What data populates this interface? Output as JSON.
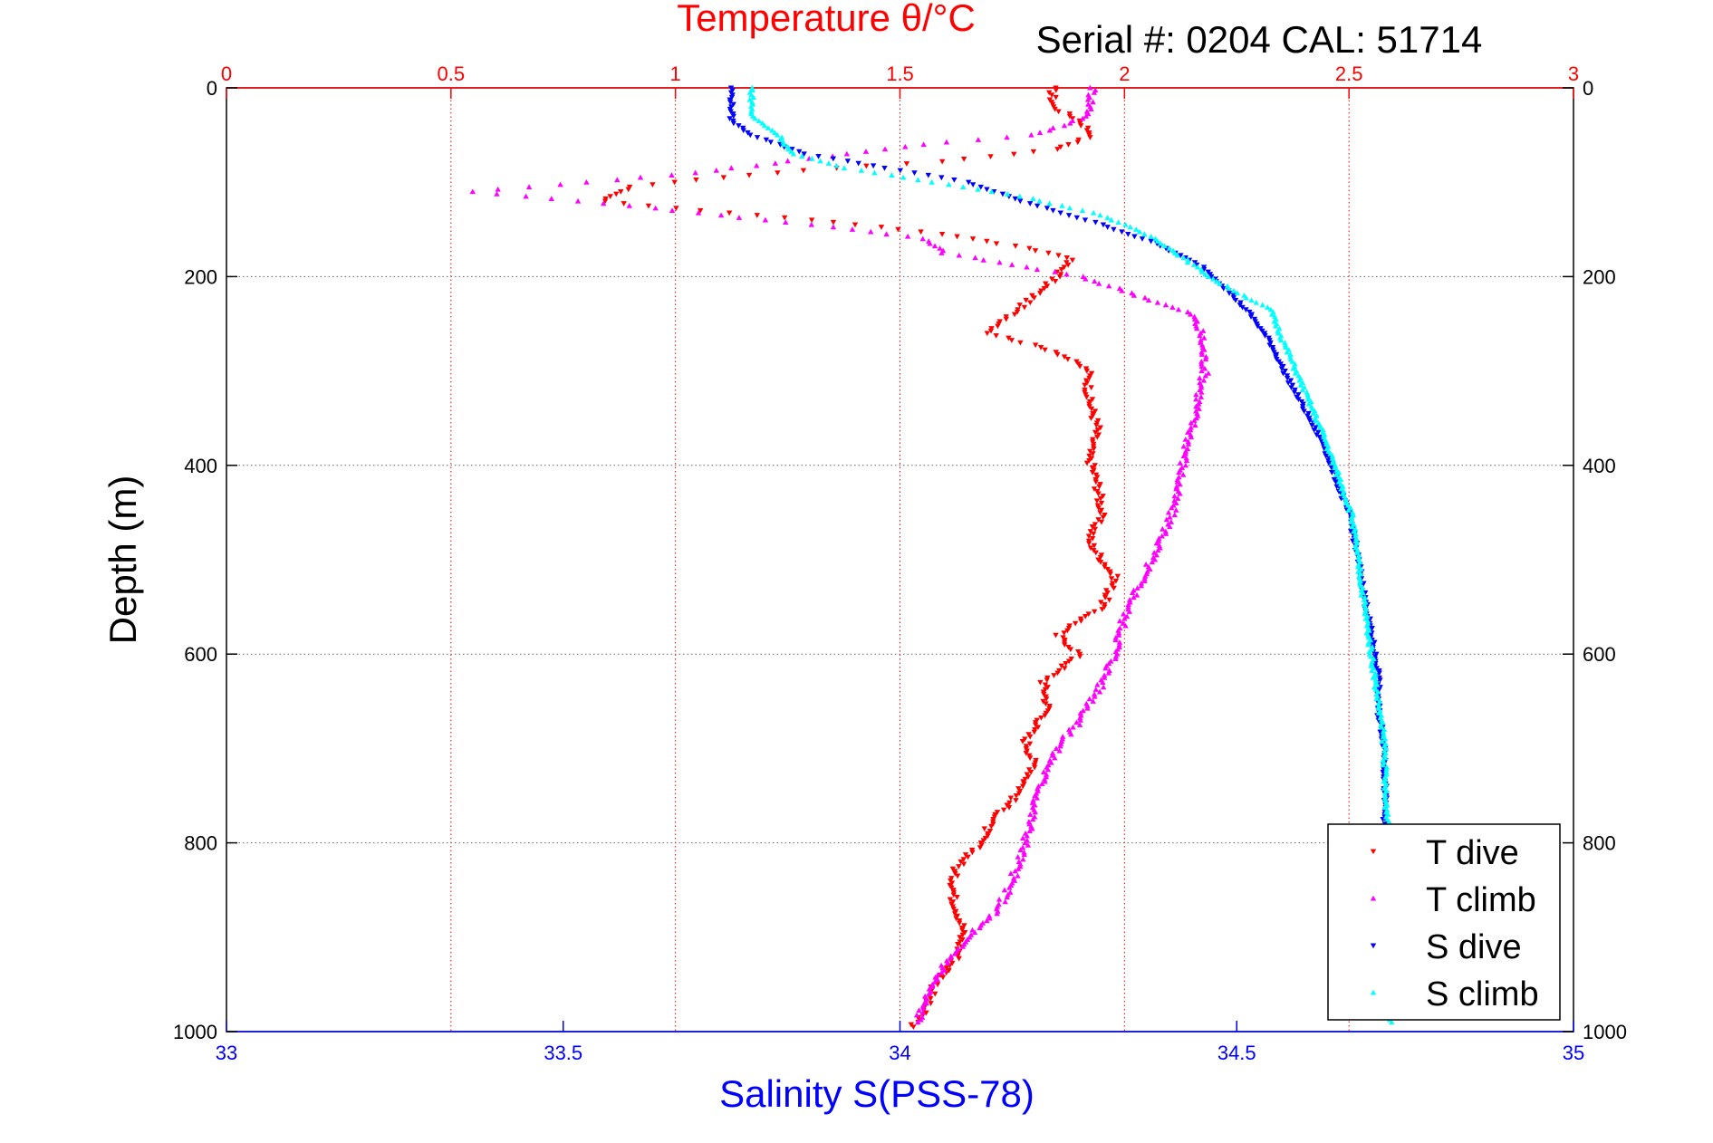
{
  "chart_data": {
    "type": "scatter",
    "title": "Temperature θ/°C",
    "subtitle": "Serial #: 0204  CAL: 51714",
    "xlabel_bottom": "Salinity S(PSS-78)",
    "xlabel_top": "Temperature θ/°C",
    "ylabel": "Depth (m)",
    "x_bottom_lim": [
      33,
      35
    ],
    "x_top_lim": [
      0,
      3
    ],
    "ylim": [
      0,
      1000
    ],
    "y_reversed": true,
    "x_bottom_ticks": [
      "33",
      "33.5",
      "34",
      "34.5",
      "35"
    ],
    "x_top_ticks": [
      "0",
      "0.5",
      "1",
      "1.5",
      "2",
      "2.5",
      "3"
    ],
    "y_ticks": [
      "0",
      "200",
      "400",
      "600",
      "800",
      "1000"
    ],
    "grid": true,
    "legend_position": "bottom-right",
    "colors": {
      "temperature_axis": "#ff0000",
      "salinity_axis": "#0000ff",
      "grid": "#666666"
    },
    "series": [
      {
        "name": "T dive",
        "axis": "top",
        "color": "#ff0000",
        "marker": "triangle-down",
        "points": [
          [
            1.84,
            0
          ],
          [
            1.84,
            20
          ],
          [
            1.9,
            35
          ],
          [
            1.93,
            50
          ],
          [
            1.85,
            65
          ],
          [
            1.6,
            78
          ],
          [
            1.35,
            85
          ],
          [
            1.1,
            95
          ],
          [
            0.9,
            105
          ],
          [
            0.84,
            120
          ],
          [
            1.05,
            130
          ],
          [
            1.3,
            140
          ],
          [
            1.6,
            155
          ],
          [
            1.78,
            170
          ],
          [
            1.88,
            180
          ],
          [
            1.85,
            200
          ],
          [
            1.8,
            220
          ],
          [
            1.75,
            240
          ],
          [
            1.7,
            260
          ],
          [
            1.85,
            280
          ],
          [
            1.92,
            300
          ],
          [
            1.92,
            330
          ],
          [
            1.94,
            360
          ],
          [
            1.92,
            390
          ],
          [
            1.94,
            420
          ],
          [
            1.95,
            450
          ],
          [
            1.92,
            480
          ],
          [
            1.95,
            500
          ],
          [
            1.98,
            520
          ],
          [
            1.95,
            550
          ],
          [
            1.85,
            580
          ],
          [
            1.9,
            600
          ],
          [
            1.82,
            630
          ],
          [
            1.83,
            660
          ],
          [
            1.78,
            690
          ],
          [
            1.8,
            720
          ],
          [
            1.76,
            750
          ],
          [
            1.7,
            780
          ],
          [
            1.68,
            800
          ],
          [
            1.62,
            830
          ],
          [
            1.62,
            860
          ],
          [
            1.64,
            890
          ],
          [
            1.63,
            920
          ],
          [
            1.58,
            950
          ],
          [
            1.55,
            980
          ],
          [
            1.53,
            995
          ]
        ]
      },
      {
        "name": "T climb",
        "axis": "top",
        "color": "#ff00ff",
        "marker": "triangle-up",
        "points": [
          [
            1.93,
            0
          ],
          [
            1.92,
            30
          ],
          [
            1.8,
            50
          ],
          [
            1.55,
            60
          ],
          [
            1.3,
            75
          ],
          [
            1.05,
            90
          ],
          [
            0.8,
            100
          ],
          [
            0.55,
            110
          ],
          [
            0.9,
            125
          ],
          [
            1.2,
            140
          ],
          [
            1.4,
            150
          ],
          [
            1.55,
            160
          ],
          [
            1.6,
            175
          ],
          [
            1.72,
            185
          ],
          [
            1.9,
            200
          ],
          [
            2.0,
            215
          ],
          [
            2.15,
            240
          ],
          [
            2.17,
            260
          ],
          [
            2.18,
            300
          ],
          [
            2.16,
            340
          ],
          [
            2.14,
            380
          ],
          [
            2.12,
            420
          ],
          [
            2.1,
            460
          ],
          [
            2.06,
            500
          ],
          [
            2.03,
            530
          ],
          [
            2.0,
            560
          ],
          [
            1.98,
            600
          ],
          [
            1.94,
            640
          ],
          [
            1.9,
            670
          ],
          [
            1.85,
            700
          ],
          [
            1.82,
            730
          ],
          [
            1.8,
            760
          ],
          [
            1.78,
            800
          ],
          [
            1.75,
            840
          ],
          [
            1.72,
            870
          ],
          [
            1.65,
            900
          ],
          [
            1.6,
            930
          ],
          [
            1.56,
            960
          ],
          [
            1.54,
            990
          ]
        ]
      },
      {
        "name": "S dive",
        "axis": "bottom",
        "color": "#0000ff",
        "marker": "triangle-down",
        "points": [
          [
            33.75,
            0
          ],
          [
            33.75,
            35
          ],
          [
            33.78,
            50
          ],
          [
            33.86,
            70
          ],
          [
            33.98,
            85
          ],
          [
            34.1,
            100
          ],
          [
            34.18,
            120
          ],
          [
            34.3,
            145
          ],
          [
            34.38,
            165
          ],
          [
            34.45,
            190
          ],
          [
            34.48,
            210
          ],
          [
            34.52,
            240
          ],
          [
            34.55,
            270
          ],
          [
            34.57,
            300
          ],
          [
            34.6,
            340
          ],
          [
            34.63,
            380
          ],
          [
            34.65,
            420
          ],
          [
            34.67,
            460
          ],
          [
            34.68,
            500
          ],
          [
            34.69,
            540
          ],
          [
            34.7,
            580
          ],
          [
            34.71,
            620
          ],
          [
            34.71,
            660
          ],
          [
            34.72,
            700
          ],
          [
            34.72,
            740
          ],
          [
            34.72,
            780
          ]
        ]
      },
      {
        "name": "S climb",
        "axis": "bottom",
        "color": "#00ffff",
        "marker": "triangle-up",
        "points": [
          [
            33.78,
            0
          ],
          [
            33.78,
            30
          ],
          [
            33.82,
            50
          ],
          [
            33.84,
            70
          ],
          [
            33.92,
            85
          ],
          [
            34.05,
            100
          ],
          [
            34.18,
            115
          ],
          [
            34.3,
            135
          ],
          [
            34.38,
            160
          ],
          [
            34.43,
            185
          ],
          [
            34.47,
            205
          ],
          [
            34.55,
            235
          ],
          [
            34.57,
            270
          ],
          [
            34.6,
            320
          ],
          [
            34.63,
            370
          ],
          [
            34.65,
            410
          ],
          [
            34.67,
            450
          ],
          [
            34.68,
            500
          ],
          [
            34.69,
            550
          ],
          [
            34.7,
            600
          ],
          [
            34.71,
            650
          ],
          [
            34.72,
            700
          ],
          [
            34.72,
            750
          ],
          [
            34.73,
            800
          ],
          [
            34.73,
            850
          ],
          [
            34.73,
            900
          ],
          [
            34.73,
            990
          ]
        ]
      }
    ]
  }
}
